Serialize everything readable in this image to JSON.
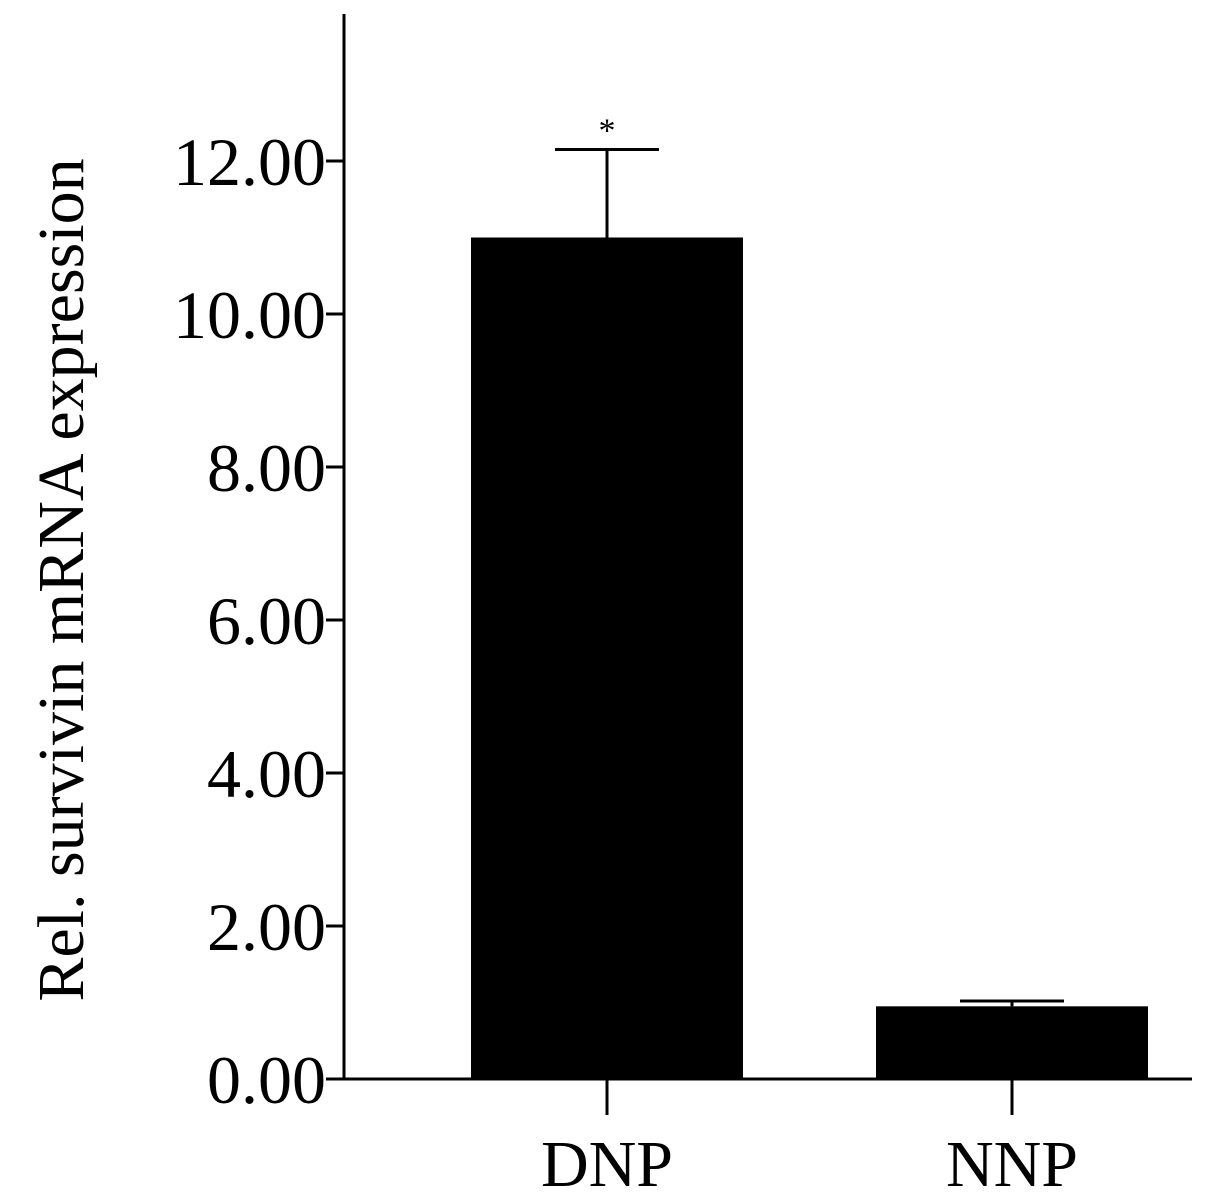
{
  "chart_data": {
    "type": "bar",
    "categories": [
      "DNP",
      "NNP"
    ],
    "values": [
      11.0,
      0.95
    ],
    "error_upper": [
      12.15,
      1.02
    ],
    "annotations": [
      "*",
      ""
    ],
    "title": "",
    "xlabel": "",
    "ylabel": "Rel. survivin mRNA expression",
    "ylim": [
      0,
      13.95
    ],
    "yticks": [
      0,
      2,
      4,
      6,
      8,
      10,
      12
    ],
    "ytick_labels": [
      "0.00",
      "2.00",
      "4.00",
      "6.00",
      "8.00",
      "10.00",
      "12.00"
    ],
    "grid": false,
    "bar_color": "#000000",
    "axis_color": "#000000"
  }
}
